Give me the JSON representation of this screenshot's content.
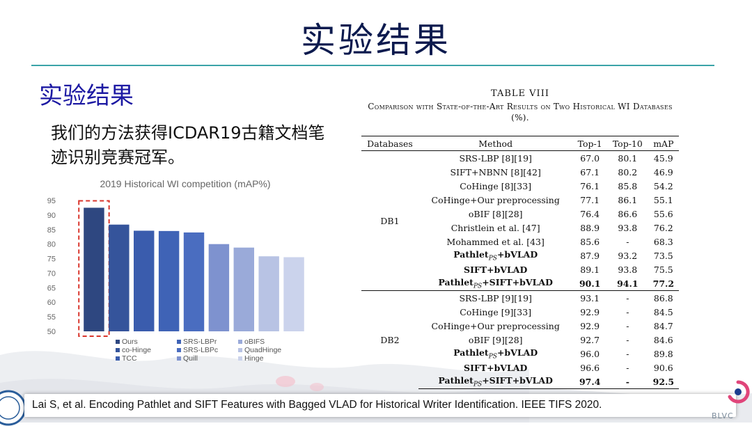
{
  "slide": {
    "title": "实验结果",
    "subtitle": "实验结果",
    "description": "我们的方法获得ICDAR19古籍文档笔迹识别竞赛冠军。",
    "citation": "Lai S, et al. Encoding Pathlet and SIFT Features with Bagged VLAD for Historical Writer Identification. IEEE TIFS 2020.",
    "logo_text": "BLVC"
  },
  "chart_data": {
    "type": "bar",
    "title": "2019 Historical WI competition (mAP%)",
    "categories": [
      "Ours",
      "co-Hinge",
      "TCC",
      "SRS-LBPr",
      "SRS-LBPc",
      "Quill",
      "oBIFS",
      "QuadHinge",
      "Hinge"
    ],
    "values": [
      92.5,
      86.7,
      84.6,
      84.5,
      84.0,
      80.0,
      78.8,
      75.8,
      75.5
    ],
    "colors": [
      "#2e4780",
      "#35549b",
      "#3a5cad",
      "#3f63b6",
      "#4a6dc0",
      "#7e92cf",
      "#9aaad9",
      "#b8c3e4",
      "#cbd3ec"
    ],
    "ylim": [
      50,
      95
    ],
    "yticks": [
      "95",
      "90",
      "85",
      "80",
      "75",
      "70",
      "65",
      "60",
      "55",
      "50"
    ],
    "highlight_index": 0,
    "highlight_color": "#d9352b",
    "grid": false,
    "legend_placement": "bottom"
  },
  "table": {
    "caption_label": "TABLE VIII",
    "caption_text": "Comparison with State-of-the-Art Results on Two Historical WI Databases (%).",
    "headers": [
      "Databases",
      "Method",
      "Top-1",
      "Top-10",
      "mAP"
    ],
    "groups": [
      {
        "db": "DB1",
        "rows": [
          {
            "method": "SRS-LBP [8][19]",
            "top1": "67.0",
            "top10": "80.1",
            "map": "45.9"
          },
          {
            "method": "SIFT+NBNN [8][42]",
            "top1": "67.1",
            "top10": "80.2",
            "map": "46.9"
          },
          {
            "method": "CoHinge [8][33]",
            "top1": "76.1",
            "top10": "85.8",
            "map": "54.2"
          },
          {
            "method": "CoHinge+Our preprocessing",
            "top1": "77.1",
            "top10": "86.1",
            "map": "55.1"
          },
          {
            "method": "oBIF [8][28]",
            "top1": "76.4",
            "top10": "86.6",
            "map": "55.6"
          },
          {
            "method": "Christlein et al. [47]",
            "top1": "88.9",
            "top10": "93.8",
            "map": "76.2"
          },
          {
            "method": "Mohammed et al. [43]",
            "top1": "85.6",
            "top10": "-",
            "map": "68.3"
          },
          {
            "method": "Pathlet",
            "sub": "PS",
            "method_suffix": "+bVLAD",
            "top1": "87.9",
            "top10": "93.2",
            "map": "73.5",
            "bold_method": true
          },
          {
            "method": "SIFT+bVLAD",
            "top1": "89.1",
            "top10": "93.8",
            "map": "75.5",
            "bold_method": true
          },
          {
            "method": "Pathlet",
            "sub": "PS",
            "method_suffix": "+SIFT+bVLAD",
            "top1": "90.1",
            "top10": "94.1",
            "map": "77.2",
            "bold_method": true,
            "bold_values": true
          }
        ]
      },
      {
        "db": "DB2",
        "rows": [
          {
            "method": "SRS-LBP [9][19]",
            "top1": "93.1",
            "top10": "-",
            "map": "86.8"
          },
          {
            "method": "CoHinge [9][33]",
            "top1": "92.9",
            "top10": "-",
            "map": "84.5"
          },
          {
            "method": "CoHinge+Our preprocessing",
            "top1": "92.9",
            "top10": "-",
            "map": "84.7"
          },
          {
            "method": "oBIF [9][28]",
            "top1": "92.7",
            "top10": "-",
            "map": "84.6"
          },
          {
            "method": "Pathlet",
            "sub": "PS",
            "method_suffix": "+bVLAD",
            "top1": "96.0",
            "top10": "-",
            "map": "89.8",
            "bold_method": true
          },
          {
            "method": "SIFT+bVLAD",
            "top1": "96.6",
            "top10": "-",
            "map": "90.6",
            "bold_method": true
          },
          {
            "method": "Pathlet",
            "sub": "PS",
            "method_suffix": "+SIFT+bVLAD",
            "top1": "97.4",
            "top10": "-",
            "map": "92.5",
            "bold_method": true,
            "bold_values": true
          }
        ]
      }
    ]
  }
}
